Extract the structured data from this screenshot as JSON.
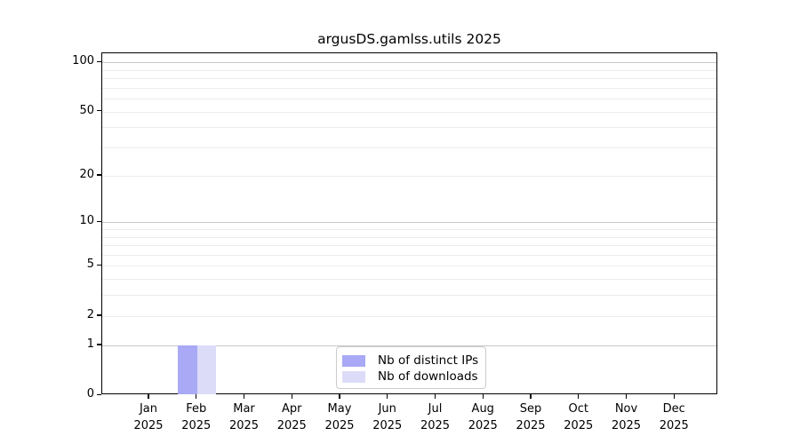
{
  "chart_data": {
    "type": "bar",
    "title": "argusDS.gamlss.utils 2025",
    "categories": [
      "Jan 2025",
      "Feb 2025",
      "Mar 2025",
      "Apr 2025",
      "May 2025",
      "Jun 2025",
      "Jul 2025",
      "Aug 2025",
      "Sep 2025",
      "Oct 2025",
      "Nov 2025",
      "Dec 2025"
    ],
    "series": [
      {
        "name": "Nb of distinct IPs",
        "color": "#a9a9f6",
        "values": [
          0,
          1,
          0,
          0,
          0,
          0,
          0,
          0,
          0,
          0,
          0,
          0
        ]
      },
      {
        "name": "Nb of downloads",
        "color": "#dcdcf8",
        "values": [
          0,
          1,
          0,
          0,
          0,
          0,
          0,
          0,
          0,
          0,
          0,
          0
        ]
      }
    ],
    "xlabel": "",
    "ylabel": "",
    "y_axis": {
      "scale": "log10(1+y)",
      "ticks": [
        0,
        1,
        2,
        5,
        10,
        20,
        50,
        100
      ],
      "major_gridlines": [
        1,
        10,
        100
      ],
      "minor_gridlines": [
        2,
        3,
        4,
        5,
        6,
        7,
        8,
        9,
        20,
        30,
        40,
        50,
        60,
        70,
        80,
        90
      ],
      "range": [
        0,
        113
      ]
    },
    "grid": "horizontal",
    "legend_position": "lower center",
    "colors": {
      "background": "#ffffff",
      "axis": "#000000",
      "text": "#000000",
      "grid_major": "#c8c8c8",
      "grid_minor": "#ececec",
      "legend_border": "#cccccc"
    }
  }
}
